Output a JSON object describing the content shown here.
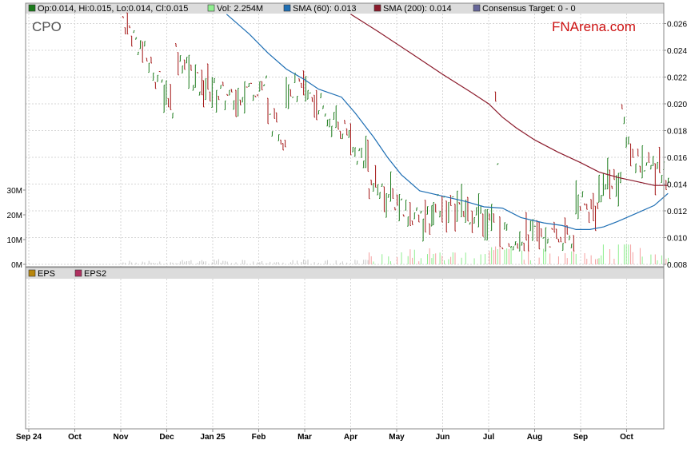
{
  "header": {
    "legend": [
      {
        "label": "Op:0.014, Hi:0.015, Lo:0.014, Cl:0.015",
        "color": "#1a7a1a",
        "icon": "green-square-icon"
      },
      {
        "label": "Vol: 2.254M",
        "color": "#90ee90",
        "icon": "lightgreen-square-icon"
      },
      {
        "label": "SMA (60): 0.013",
        "color": "#1f6fb4",
        "icon": "blue-square-icon"
      },
      {
        "label": "SMA (200): 0.014",
        "color": "#8b1a2b",
        "icon": "maroon-square-icon"
      },
      {
        "label": "Consensus Target: 0 - 0",
        "color": "#666699",
        "icon": "slate-square-icon"
      }
    ],
    "ticker": "CPO",
    "brand": "FNArena.com"
  },
  "lower_panel": {
    "legend": [
      {
        "label": "EPS",
        "color": "#b8860b",
        "icon": "gold-square-icon"
      },
      {
        "label": "EPS2",
        "color": "#b03060",
        "icon": "pink-square-icon"
      }
    ]
  },
  "chart_data": {
    "type": "ohlc",
    "ticker": "CPO",
    "price_axis": {
      "ticks": [
        "0.026",
        "0.024",
        "0.022",
        "0.020",
        "0.018",
        "0.016",
        "0.014",
        "0.012",
        "0.010",
        "0.008"
      ],
      "ylim": [
        0.008,
        0.027
      ]
    },
    "volume_axis": {
      "ticks": [
        "30M",
        "20M",
        "10M",
        "0M"
      ],
      "ylim": [
        0,
        35
      ]
    },
    "x_axis": {
      "ticks": [
        "Sep 24",
        "Oct",
        "Nov",
        "Dec",
        "Jan 25",
        "Feb",
        "Mar",
        "Apr",
        "May",
        "Jun",
        "Jul",
        "Aug",
        "Sep",
        "Oct"
      ],
      "bold_ticks": [
        "Sep 24",
        "Jan 25"
      ]
    },
    "sma60": {
      "name": "SMA (60)",
      "color": "#1f6fb4",
      "points": [
        [
          4.3,
          0.0267
        ],
        [
          4.8,
          0.0252
        ],
        [
          5.2,
          0.0238
        ],
        [
          5.6,
          0.0226
        ],
        [
          6.0,
          0.0218
        ],
        [
          6.3,
          0.0211
        ],
        [
          6.8,
          0.0205
        ],
        [
          7.1,
          0.0193
        ],
        [
          7.5,
          0.0175
        ],
        [
          7.8,
          0.016
        ],
        [
          8.1,
          0.0147
        ],
        [
          8.5,
          0.0135
        ],
        [
          9.0,
          0.0131
        ],
        [
          9.5,
          0.0127
        ],
        [
          9.9,
          0.0123
        ],
        [
          10.3,
          0.0122
        ],
        [
          10.7,
          0.0115
        ],
        [
          11.2,
          0.0111
        ],
        [
          11.6,
          0.0109
        ],
        [
          11.9,
          0.0106
        ],
        [
          12.2,
          0.0106
        ],
        [
          12.5,
          0.0108
        ],
        [
          12.8,
          0.0112
        ],
        [
          13.2,
          0.0118
        ],
        [
          13.6,
          0.0124
        ],
        [
          13.9,
          0.0133
        ]
      ]
    },
    "sma200": {
      "name": "SMA (200)",
      "color": "#8b1a2b",
      "points": [
        [
          7.0,
          0.0267
        ],
        [
          7.6,
          0.0254
        ],
        [
          8.3,
          0.0238
        ],
        [
          9.0,
          0.0222
        ],
        [
          9.6,
          0.0209
        ],
        [
          10.0,
          0.02
        ],
        [
          10.3,
          0.019
        ],
        [
          10.6,
          0.0182
        ],
        [
          11.0,
          0.0173
        ],
        [
          11.5,
          0.0164
        ],
        [
          12.0,
          0.0156
        ],
        [
          12.4,
          0.0149
        ],
        [
          12.8,
          0.0145
        ],
        [
          13.2,
          0.0142
        ],
        [
          13.6,
          0.0139
        ],
        [
          13.9,
          0.0139
        ]
      ]
    },
    "ohlc_segments": [
      {
        "from": 2.05,
        "to": 3.2,
        "open": 0.0265,
        "close": 0.02,
        "vol": 0.4
      },
      {
        "from": 3.2,
        "to": 3.8,
        "open": 0.024,
        "close": 0.021,
        "vol": 0.5
      },
      {
        "from": 3.8,
        "to": 4.6,
        "open": 0.0215,
        "close": 0.02,
        "vol": 0.6
      },
      {
        "from": 4.6,
        "to": 5.2,
        "open": 0.021,
        "close": 0.0215,
        "vol": 0.5
      },
      {
        "from": 5.2,
        "to": 5.6,
        "open": 0.019,
        "close": 0.0175,
        "vol": 0.5
      },
      {
        "from": 5.6,
        "to": 6.4,
        "open": 0.0215,
        "close": 0.02,
        "vol": 0.6
      },
      {
        "from": 6.4,
        "to": 7.0,
        "open": 0.019,
        "close": 0.018,
        "vol": 0.5
      },
      {
        "from": 7.0,
        "to": 7.4,
        "open": 0.0165,
        "close": 0.016,
        "vol": 0.6
      },
      {
        "from": 7.4,
        "to": 8.2,
        "open": 0.014,
        "close": 0.0125,
        "vol": 1.5
      },
      {
        "from": 8.2,
        "to": 8.8,
        "open": 0.012,
        "close": 0.011,
        "vol": 1.8
      },
      {
        "from": 8.8,
        "to": 9.5,
        "open": 0.0125,
        "close": 0.012,
        "vol": 1.4
      },
      {
        "from": 9.5,
        "to": 10.15,
        "open": 0.012,
        "close": 0.0115,
        "vol": 1.9
      },
      {
        "from": 10.15,
        "to": 10.3,
        "open": 0.02,
        "close": 0.01,
        "vol": 3.5
      },
      {
        "from": 10.3,
        "to": 11.9,
        "open": 0.01,
        "close": 0.01,
        "vol": 2.2
      },
      {
        "from": 11.9,
        "to": 12.4,
        "open": 0.0125,
        "close": 0.012,
        "vol": 2.0
      },
      {
        "from": 12.4,
        "to": 12.9,
        "open": 0.0135,
        "close": 0.0145,
        "vol": 3.0
      },
      {
        "from": 12.9,
        "to": 13.2,
        "open": 0.019,
        "close": 0.016,
        "vol": 4.0
      },
      {
        "from": 13.2,
        "to": 13.95,
        "open": 0.016,
        "close": 0.0145,
        "vol": 2.254
      }
    ]
  }
}
